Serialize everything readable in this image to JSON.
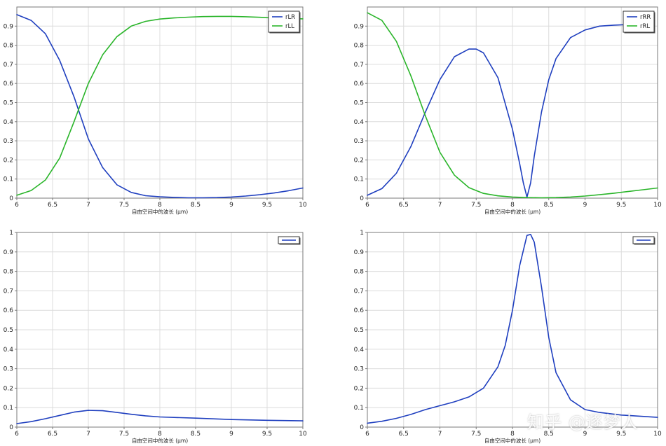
{
  "colors": {
    "blue": "#1f3fbf",
    "green": "#2ab52a",
    "grid": "#dcdcdc",
    "axis": "#7a7a7a",
    "text": "#222222"
  },
  "watermark": "知乎 @逐梦人",
  "chart_data": [
    {
      "type": "line",
      "xlabel": "自由空间中的波长 (µm)",
      "xlim": [
        6,
        10
      ],
      "ylim": [
        0,
        1
      ],
      "xticks": [
        "6",
        "6.5",
        "7",
        "7.5",
        "8",
        "8.5",
        "9",
        "9.5",
        "10"
      ],
      "yticks": [
        "0",
        "0.1",
        "0.2",
        "0.3",
        "0.4",
        "0.5",
        "0.6",
        "0.7",
        "0.8",
        "0.9"
      ],
      "legend_position": "top-right",
      "series": [
        {
          "name": "rLR",
          "color": "#1f3fbf",
          "x": [
            6,
            6.2,
            6.4,
            6.6,
            6.8,
            7,
            7.2,
            7.4,
            7.6,
            7.8,
            8,
            8.2,
            8.4,
            8.6,
            8.8,
            9,
            9.2,
            9.4,
            9.6,
            9.8,
            10
          ],
          "y": [
            0.96,
            0.93,
            0.86,
            0.72,
            0.53,
            0.31,
            0.16,
            0.07,
            0.03,
            0.013,
            0.007,
            0.004,
            0.002,
            0.002,
            0.003,
            0.006,
            0.011,
            0.018,
            0.027,
            0.039,
            0.053
          ]
        },
        {
          "name": "rLL",
          "color": "#2ab52a",
          "x": [
            6,
            6.2,
            6.4,
            6.6,
            6.8,
            7,
            7.2,
            7.4,
            7.6,
            7.8,
            8,
            8.2,
            8.4,
            8.6,
            8.8,
            9,
            9.2,
            9.4,
            9.6,
            9.8,
            10
          ],
          "y": [
            0.015,
            0.04,
            0.095,
            0.21,
            0.4,
            0.6,
            0.75,
            0.845,
            0.9,
            0.925,
            0.937,
            0.943,
            0.947,
            0.95,
            0.951,
            0.951,
            0.949,
            0.946,
            0.942,
            0.94,
            0.938
          ]
        }
      ]
    },
    {
      "type": "line",
      "xlabel": "自由空间中的波长 (µm)",
      "xlim": [
        6,
        10
      ],
      "ylim": [
        0,
        1
      ],
      "xticks": [
        "6",
        "6.5",
        "7",
        "7.5",
        "8",
        "8.5",
        "9",
        "9.5",
        "10"
      ],
      "yticks": [
        "0",
        "0.1",
        "0.2",
        "0.3",
        "0.4",
        "0.5",
        "0.6",
        "0.7",
        "0.8",
        "0.9"
      ],
      "legend_position": "top-right",
      "series": [
        {
          "name": "rRR",
          "color": "#1f3fbf",
          "x": [
            6,
            6.2,
            6.4,
            6.6,
            6.8,
            7,
            7.2,
            7.4,
            7.5,
            7.6,
            7.8,
            8,
            8.1,
            8.15,
            8.2,
            8.25,
            8.3,
            8.4,
            8.5,
            8.6,
            8.8,
            9,
            9.2,
            9.4,
            9.6
          ],
          "y": [
            0.015,
            0.05,
            0.13,
            0.27,
            0.45,
            0.62,
            0.74,
            0.78,
            0.78,
            0.76,
            0.63,
            0.36,
            0.18,
            0.08,
            0.005,
            0.08,
            0.22,
            0.45,
            0.62,
            0.73,
            0.84,
            0.88,
            0.9,
            0.905,
            0.908
          ]
        },
        {
          "name": "rRL",
          "color": "#2ab52a",
          "x": [
            6,
            6.2,
            6.4,
            6.6,
            6.8,
            7,
            7.2,
            7.4,
            7.6,
            7.8,
            8,
            8.2,
            8.4,
            8.6,
            8.8,
            9,
            9.2,
            9.4,
            9.6,
            9.8,
            10
          ],
          "y": [
            0.97,
            0.93,
            0.82,
            0.64,
            0.43,
            0.24,
            0.12,
            0.055,
            0.025,
            0.012,
            0.006,
            0.003,
            0.002,
            0.003,
            0.006,
            0.011,
            0.018,
            0.026,
            0.035,
            0.044,
            0.053
          ]
        }
      ]
    },
    {
      "type": "line",
      "xlabel": "自由空间中的波长 (µm)",
      "xlim": [
        6,
        10
      ],
      "ylim": [
        0,
        1
      ],
      "xticks": [
        "6",
        "6.5",
        "7",
        "7.5",
        "8",
        "8.5",
        "9",
        "9.5",
        "10"
      ],
      "yticks": [
        "0",
        "0.1",
        "0.2",
        "0.3",
        "0.4",
        "0.5",
        "0.6",
        "0.7",
        "0.8",
        "0.9",
        "1"
      ],
      "legend_position": "top-right",
      "series": [
        {
          "name": "",
          "color": "#1f3fbf",
          "x": [
            6,
            6.2,
            6.4,
            6.6,
            6.8,
            7,
            7.2,
            7.4,
            7.6,
            7.8,
            8,
            8.5,
            9,
            9.5,
            10
          ],
          "y": [
            0.018,
            0.028,
            0.043,
            0.06,
            0.077,
            0.086,
            0.084,
            0.075,
            0.066,
            0.058,
            0.052,
            0.046,
            0.039,
            0.035,
            0.032
          ]
        }
      ]
    },
    {
      "type": "line",
      "xlabel": "自由空间中的波长 (µm)",
      "xlim": [
        6,
        10
      ],
      "ylim": [
        0,
        1
      ],
      "xticks": [
        "6",
        "6.5",
        "7",
        "7.5",
        "8",
        "8.5",
        "9",
        "9.5",
        "10"
      ],
      "yticks": [
        "0",
        "0.1",
        "0.2",
        "0.3",
        "0.4",
        "0.5",
        "0.6",
        "0.7",
        "0.8",
        "0.9",
        "1"
      ],
      "legend_position": "top-right",
      "series": [
        {
          "name": "",
          "color": "#1f3fbf",
          "x": [
            6,
            6.2,
            6.4,
            6.6,
            6.8,
            7,
            7.2,
            7.4,
            7.6,
            7.8,
            7.9,
            8,
            8.1,
            8.2,
            8.25,
            8.3,
            8.4,
            8.5,
            8.6,
            8.8,
            9,
            9.2,
            9.5,
            10
          ],
          "y": [
            0.02,
            0.03,
            0.045,
            0.065,
            0.09,
            0.11,
            0.13,
            0.155,
            0.2,
            0.31,
            0.42,
            0.6,
            0.83,
            0.985,
            0.99,
            0.95,
            0.72,
            0.46,
            0.28,
            0.14,
            0.09,
            0.075,
            0.062,
            0.05
          ]
        }
      ]
    }
  ]
}
